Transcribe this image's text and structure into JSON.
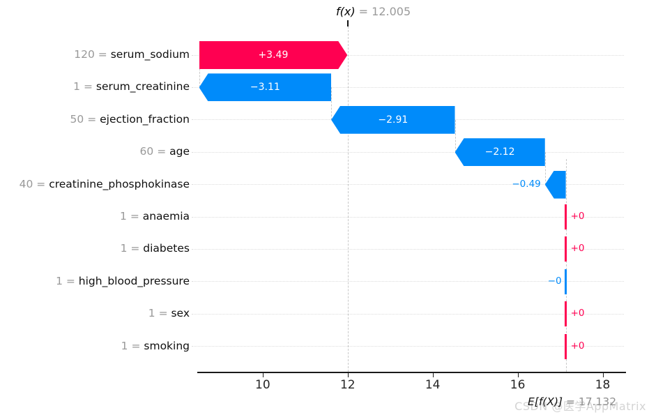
{
  "title": {
    "fx_label": "f(x)",
    "fx_value": " = 12.005"
  },
  "footer": {
    "efx_label": "E[f(X)]",
    "efx_value": " = 17.132"
  },
  "watermark": "CSDN @医学AppMatrix",
  "colors": {
    "positive": "#ff0051",
    "negative": "#008bfa",
    "grid": "#dcdcdc",
    "dashed": "#c9c9c9",
    "axis": "#1a1a1a",
    "label_value": "#999999",
    "label_name": "#0f0f0f",
    "watermark": "#d4d4d4"
  },
  "chart_data": {
    "type": "bar",
    "subtype": "shap-waterfall",
    "title": "f(x) = 12.005",
    "fx": 12.005,
    "base_value": 17.132,
    "base_label": "E[f(X)] = 17.132",
    "xlim": [
      8.46,
      18.5
    ],
    "grid": "dotted-horizontal-per-row",
    "ticks": [
      {
        "value": 10,
        "label": "10"
      },
      {
        "value": 12,
        "label": "12"
      },
      {
        "value": 14,
        "label": "14"
      },
      {
        "value": 16,
        "label": "16"
      },
      {
        "value": 18,
        "label": "18"
      }
    ],
    "features": [
      {
        "value": "120",
        "name": "serum_sodium",
        "shap": 3.49,
        "label": "+3.49",
        "sign": "positive"
      },
      {
        "value": "1",
        "name": "serum_creatinine",
        "shap": -3.11,
        "label": "−3.11",
        "sign": "negative"
      },
      {
        "value": "50",
        "name": "ejection_fraction",
        "shap": -2.91,
        "label": "−2.91",
        "sign": "negative"
      },
      {
        "value": "60",
        "name": "age",
        "shap": -2.12,
        "label": "−2.12",
        "sign": "negative"
      },
      {
        "value": "40",
        "name": "creatinine_phosphokinase",
        "shap": -0.49,
        "label": "−0.49",
        "sign": "negative"
      },
      {
        "value": "1",
        "name": "anaemia",
        "shap": 0,
        "label": "+0",
        "sign": "positive"
      },
      {
        "value": "1",
        "name": "diabetes",
        "shap": 0,
        "label": "+0",
        "sign": "positive"
      },
      {
        "value": "1",
        "name": "high_blood_pressure",
        "shap": 0,
        "label": "−0",
        "sign": "negative"
      },
      {
        "value": "1",
        "name": "sex",
        "shap": 0,
        "label": "+0",
        "sign": "positive"
      },
      {
        "value": "1",
        "name": "smoking",
        "shap": 0,
        "label": "+0",
        "sign": "positive"
      }
    ]
  }
}
